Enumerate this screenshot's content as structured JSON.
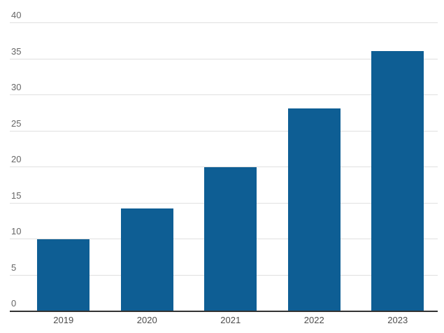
{
  "chart_data": {
    "type": "bar",
    "categories": [
      "2019",
      "2020",
      "2021",
      "2022",
      "2023"
    ],
    "values": [
      9.9,
      14.2,
      19.9,
      28.1,
      36
    ],
    "title": "",
    "xlabel": "",
    "ylabel": "",
    "ylim": [
      0,
      40
    ],
    "yticks": [
      0,
      5,
      10,
      15,
      20,
      25,
      30,
      35,
      40
    ],
    "grid": true,
    "legend": false,
    "colors": {
      "bar": "#0e5e94",
      "gridline": "#e0e0e0",
      "axis_line": "#333333",
      "ytick_label": "#666666",
      "xtick_label": "#4d4d4d",
      "background": "#ffffff"
    }
  }
}
